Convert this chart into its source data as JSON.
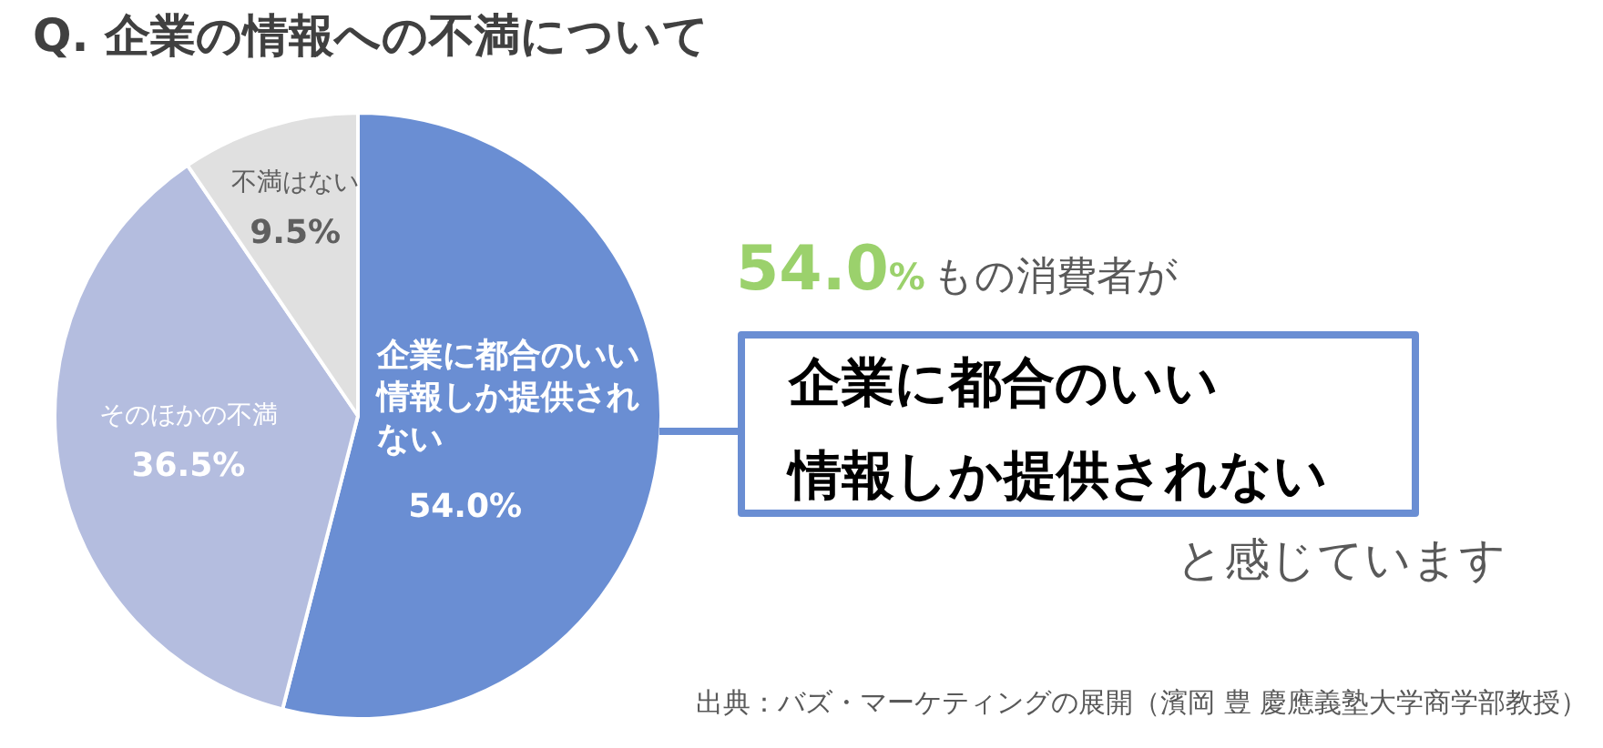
{
  "chart_data": {
    "type": "pie",
    "title": "Q. 企業の情報への不満について",
    "categories": [
      "企業に都合のいい情報しか提供されない",
      "そのほかの不満",
      "不満はない"
    ],
    "values": [
      54.0,
      36.5,
      9.5
    ],
    "colors": [
      "#6a8ed3",
      "#b4bddf",
      "#e0e0e0"
    ],
    "value_labels": [
      "54.0%",
      "36.5%",
      "9.5%"
    ],
    "annotations": [
      "54.0%もの消費者が",
      "企業に都合のいい",
      "情報しか提供されない",
      "と感じています",
      "出典：バズ・マーケティングの展開（濱岡 豊 慶應義塾大学商学部教授）"
    ]
  }
}
